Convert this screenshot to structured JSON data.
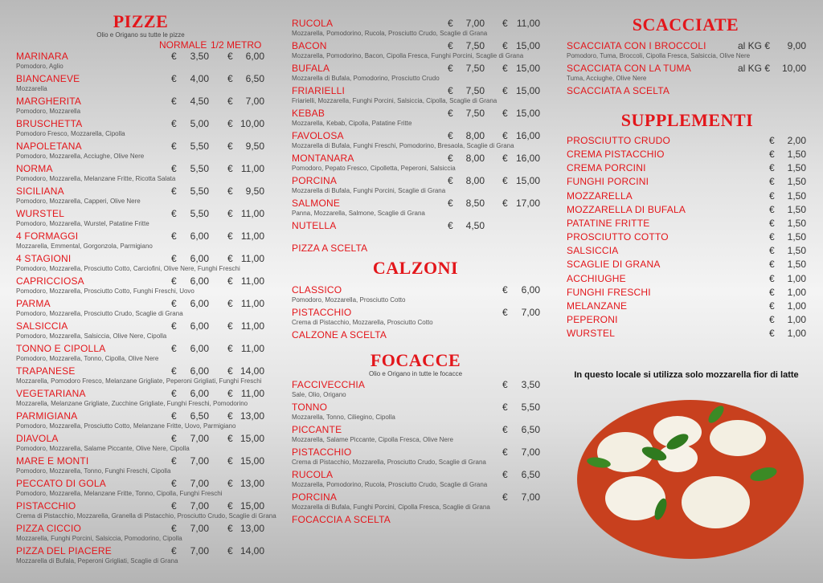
{
  "colors": {
    "accent": "#e3161b",
    "text": "#333333"
  },
  "currency": "€",
  "pizze": {
    "title": "PIZZE",
    "subtitle": "Olio e Origano su tutte le pizze",
    "col_normale": "NORMALE",
    "col_metro": "1/2 METRO",
    "items": [
      {
        "name": "MARINARA",
        "desc": "Pomodoro, Aglio",
        "p1": "3,50",
        "p2": "6,00"
      },
      {
        "name": "BIANCANEVE",
        "desc": "Mozzarella",
        "p1": "4,00",
        "p2": "6,50"
      },
      {
        "name": "MARGHERITA",
        "desc": "Pomodoro, Mozzarella",
        "p1": "4,50",
        "p2": "7,00"
      },
      {
        "name": "BRUSCHETTA",
        "desc": "Pomodoro Fresco, Mozzarella, Cipolla",
        "p1": "5,00",
        "p2": "10,00"
      },
      {
        "name": "NAPOLETANA",
        "desc": "Pomodoro, Mozzarella, Acciughe, Olive Nere",
        "p1": "5,50",
        "p2": "9,50"
      },
      {
        "name": "NORMA",
        "desc": "Pomodoro, Mozzarella, Melanzane Fritte, Ricotta Salata",
        "p1": "5,50",
        "p2": "11,00"
      },
      {
        "name": "SICILIANA",
        "desc": "Pomodoro, Mozzarella, Capperi, Olive Nere",
        "p1": "5,50",
        "p2": "9,50"
      },
      {
        "name": "WURSTEL",
        "desc": "Pomodoro, Mozzarella, Wurstel, Patatine Fritte",
        "p1": "5,50",
        "p2": "11,00"
      },
      {
        "name": "4 FORMAGGI",
        "desc": "Mozzarella, Emmental, Gorgonzola, Parmigiano",
        "p1": "6,00",
        "p2": "11,00"
      },
      {
        "name": "4 STAGIONI",
        "desc": "Pomodoro, Mozzarella, Prosciutto Cotto, Carciofini, Olive Nere, Funghi Freschi",
        "p1": "6,00",
        "p2": "11,00"
      },
      {
        "name": "CAPRICCIOSA",
        "desc": "Pomodoro, Mozzarella, Prosciutto Cotto, Funghi Freschi, Uovo",
        "p1": "6,00",
        "p2": "11,00"
      },
      {
        "name": "PARMA",
        "desc": "Pomodoro, Mozzarella, Prosciutto Crudo, Scaglie di Grana",
        "p1": "6,00",
        "p2": "11,00"
      },
      {
        "name": "SALSICCIA",
        "desc": "Pomodoro, Mozzarella, Salsiccia, Olive Nere, Cipolla",
        "p1": "6,00",
        "p2": "11,00"
      },
      {
        "name": "TONNO E CIPOLLA",
        "desc": "Pomodoro, Mozzarella, Tonno, Cipolla, Olive Nere",
        "p1": "6,00",
        "p2": "11,00"
      },
      {
        "name": "TRAPANESE",
        "desc": "Mozzarella, Pomodoro Fresco, Melanzane Grigliate, Peperoni Grigliati, Funghi Freschi",
        "p1": "6,00",
        "p2": "14,00"
      },
      {
        "name": "VEGETARIANA",
        "desc": "Mozzarella, Melanzane Grigliate, Zucchine Grigliate, Funghi Freschi, Pomodorino",
        "p1": "6,00",
        "p2": "11,00"
      },
      {
        "name": "PARMIGIANA",
        "desc": "Pomodoro, Mozzarella, Prosciutto Cotto, Melanzane Fritte, Uovo, Parmigiano",
        "p1": "6,50",
        "p2": "13,00"
      },
      {
        "name": "DIAVOLA",
        "desc": "Pomodoro, Mozzarella, Salame Piccante, Olive Nere, Cipolla",
        "p1": "7,00",
        "p2": "15,00"
      },
      {
        "name": "MARE E MONTI",
        "desc": "Pomodoro, Mozzarella, Tonno, Funghi Freschi, Cipolla",
        "p1": "7,00",
        "p2": "15,00"
      },
      {
        "name": "PECCATO DI GOLA",
        "desc": "Pomodoro, Mozzarella, Melanzane Fritte, Tonno, Cipolla, Funghi Freschi",
        "p1": "7,00",
        "p2": "13,00"
      },
      {
        "name": "PISTACCHIO",
        "desc": "Crema di Pistacchio, Mozzarella, Granella di Pistacchio, Prosciutto Crudo, Scaglie di Grana",
        "p1": "7,00",
        "p2": "15,00"
      },
      {
        "name": "PIZZA CICCIO",
        "desc": "Mozzarella, Funghi Porcini, Salsiccia, Pomodorino, Cipolla",
        "p1": "7,00",
        "p2": "13,00"
      },
      {
        "name": "PIZZA DEL PIACERE",
        "desc": "Mozzarella di Bufala, Peperoni Grigliati, Scaglie di Grana",
        "p1": "7,00",
        "p2": "14,00"
      }
    ],
    "items2": [
      {
        "name": "RUCOLA",
        "desc": "Mozzarella, Pomodorino, Rucola, Prosciutto Crudo, Scaglie di Grana",
        "p1": "7,00",
        "p2": "11,00"
      },
      {
        "name": "BACON",
        "desc": "Mozzarella, Pomodorino, Bacon, Cipolla Fresca, Funghi Porcini, Scaglie di Grana",
        "p1": "7,50",
        "p2": "15,00"
      },
      {
        "name": "BUFALA",
        "desc": "Mozzarella di Bufala, Pomodorino, Prosciutto Crudo",
        "p1": "7,50",
        "p2": "15,00"
      },
      {
        "name": "FRIARIELLI",
        "desc": "Friarielli, Mozzarella, Funghi Porcini, Salsiccia, Cipolla, Scaglie di Grana",
        "p1": "7,50",
        "p2": "15,00"
      },
      {
        "name": "KEBAB",
        "desc": "Mozzarella, Kebab, Cipolla, Patatine Fritte",
        "p1": "7,50",
        "p2": "15,00"
      },
      {
        "name": "FAVOLOSA",
        "desc": "Mozzarella di Bufala, Funghi Freschi, Pomodorino, Bresaola, Scaglie di Grana",
        "p1": "8,00",
        "p2": "16,00"
      },
      {
        "name": "MONTANARA",
        "desc": "Pomodoro, Pepato Fresco, Cipolletta, Peperoni, Salsiccia",
        "p1": "8,00",
        "p2": "16,00"
      },
      {
        "name": "PORCINA",
        "desc": "Mozzarella di Bufala, Funghi Porcini, Scaglie di Grana",
        "p1": "8,00",
        "p2": "15,00"
      },
      {
        "name": "SALMONE",
        "desc": "Panna, Mozzarella, Salmone, Scaglie di Grana",
        "p1": "8,50",
        "p2": "17,00"
      },
      {
        "name": "NUTELLA",
        "desc": "",
        "p1": "4,50",
        "p2": ""
      },
      {
        "name": "PIZZA A SCELTA",
        "desc": "",
        "p1": "",
        "p2": ""
      }
    ]
  },
  "calzoni": {
    "title": "CALZONI",
    "items": [
      {
        "name": "CLASSICO",
        "desc": "Pomodoro, Mozzarella, Prosciutto Cotto",
        "p": "6,00"
      },
      {
        "name": "PISTACCHIO",
        "desc": "Crema di Pistacchio, Mozzarella, Prosciutto Cotto",
        "p": "7,00"
      },
      {
        "name": "CALZONE A SCELTA",
        "desc": "",
        "p": ""
      }
    ]
  },
  "focacce": {
    "title": "FOCACCE",
    "subtitle": "Olio e Origano in tutte le focacce",
    "items": [
      {
        "name": "FACCIVECCHIA",
        "desc": "Sale, Olio, Origano",
        "p": "3,50"
      },
      {
        "name": "TONNO",
        "desc": "Mozzarella, Tonno, Ciliegino, Cipolla",
        "p": "5,50"
      },
      {
        "name": "PICCANTE",
        "desc": "Mozzarella, Salame Piccante, Cipolla Fresca, Olive Nere",
        "p": "6,50"
      },
      {
        "name": "PISTACCHIO",
        "desc": "Crema di Pistacchio, Mozzarella, Prosciutto Crudo, Scaglie di Grana",
        "p": "7,00"
      },
      {
        "name": "RUCOLA",
        "desc": "Mozzarella, Pomodorino, Rucola, Prosciutto Crudo, Scaglie di Grana",
        "p": "6,50"
      },
      {
        "name": "PORCINA",
        "desc": "Mozzarella di Bufala, Funghi Porcini, Cipolla Fresca, Scaglie di Grana",
        "p": "7,00"
      },
      {
        "name": "FOCACCIA A SCELTA",
        "desc": "",
        "p": ""
      }
    ]
  },
  "scacciate": {
    "title": "SCACCIATE",
    "unit": "al KG €",
    "items": [
      {
        "name": "SCACCIATA CON I BROCCOLI",
        "desc": "Pomodoro, Tuma, Broccoli, Cipolla Fresca, Salsiccia, Olive Nere",
        "p": "9,00"
      },
      {
        "name": "SCACCIATA CON LA TUMA",
        "desc": "Tuma, Acciughe, Olive Nere",
        "p": "10,00"
      },
      {
        "name": "SCACCIATA A SCELTA",
        "desc": "",
        "p": ""
      }
    ]
  },
  "supplementi": {
    "title": "SUPPLEMENTI",
    "items": [
      {
        "name": "PROSCIUTTO CRUDO",
        "p": "2,00"
      },
      {
        "name": "CREMA PISTACCHIO",
        "p": "1,50"
      },
      {
        "name": "CREMA PORCINI",
        "p": "1,50"
      },
      {
        "name": "FUNGHI PORCINI",
        "p": "1,50"
      },
      {
        "name": "MOZZARELLA",
        "p": "1,50"
      },
      {
        "name": "MOZZARELLA DI BUFALA",
        "p": "1,50"
      },
      {
        "name": "PATATINE FRITTE",
        "p": "1,50"
      },
      {
        "name": "PROSCIUTTO COTTO",
        "p": "1,50"
      },
      {
        "name": "SALSICCIA",
        "p": "1,50"
      },
      {
        "name": "SCAGLIE DI GRANA",
        "p": "1,50"
      },
      {
        "name": "ACCHIUGHE",
        "p": "1,00"
      },
      {
        "name": "FUNGHI FRESCHI",
        "p": "1,00"
      },
      {
        "name": "MELANZANE",
        "p": "1,00"
      },
      {
        "name": "PEPERONI",
        "p": "1,00"
      },
      {
        "name": "WURSTEL",
        "p": "1,00"
      }
    ]
  },
  "note": "In questo locale si utilizza solo mozzarella fior di latte",
  "image": {
    "icon": "pizza-margherita-photo"
  }
}
